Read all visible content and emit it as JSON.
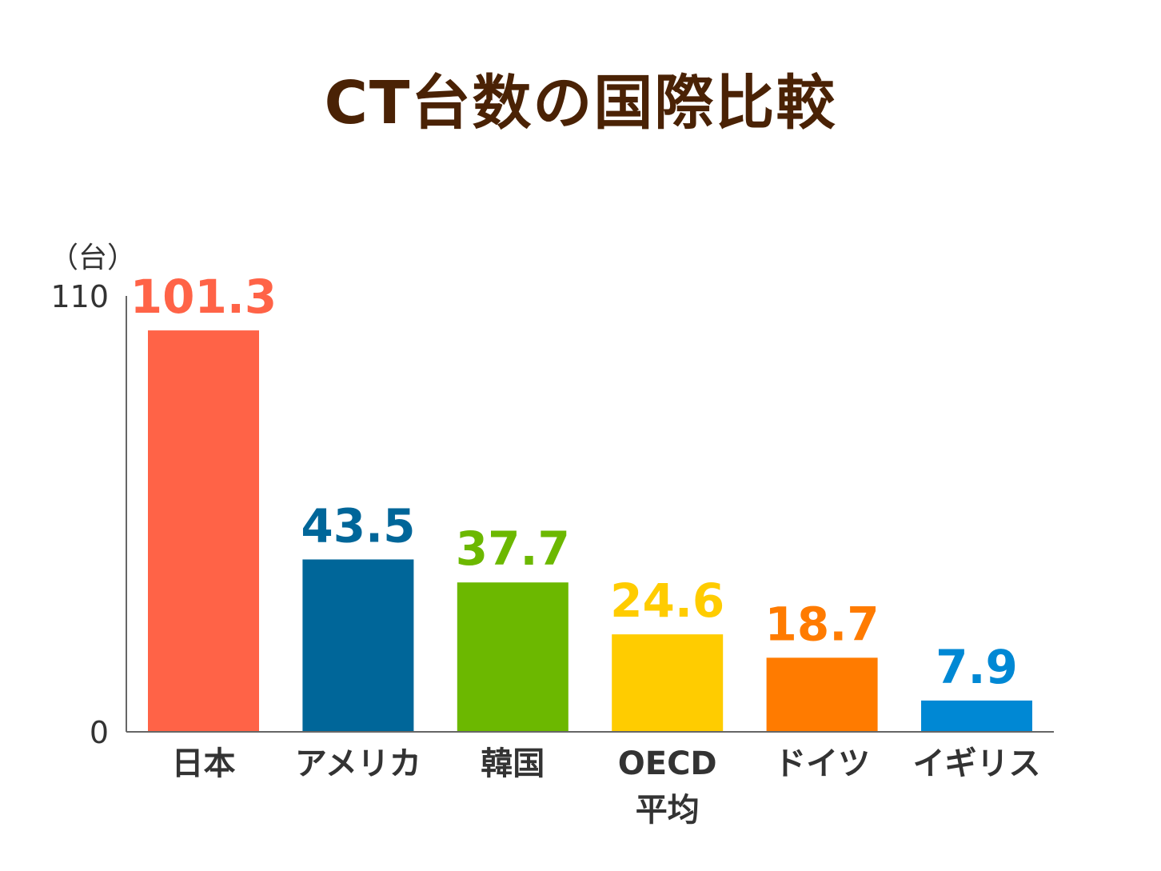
{
  "chart_data": {
    "type": "bar",
    "title": "CT台数の国際比較",
    "unit_label": "（台）",
    "categories": [
      "日本",
      "アメリカ",
      "韓国",
      "OECD 平均",
      "ドイツ",
      "イギリス"
    ],
    "category_lines": [
      [
        "日本"
      ],
      [
        "アメリカ"
      ],
      [
        "韓国"
      ],
      [
        "OECD",
        "平均"
      ],
      [
        "ドイツ"
      ],
      [
        "イギリス"
      ]
    ],
    "values": [
      101.3,
      43.5,
      37.7,
      24.6,
      18.7,
      7.9
    ],
    "value_labels": [
      "101.3",
      "43.5",
      "37.7",
      "24.6",
      "18.7",
      "7.9"
    ],
    "colors": [
      "#ff6347",
      "#006699",
      "#6cb800",
      "#ffcc00",
      "#ff7b00",
      "#0088d4"
    ],
    "ylim": [
      0,
      110
    ],
    "y_tick_labels": [
      "0",
      "110"
    ],
    "axis_color": "#666666",
    "title_color": "#4a2205",
    "grid": false,
    "legend": false
  }
}
